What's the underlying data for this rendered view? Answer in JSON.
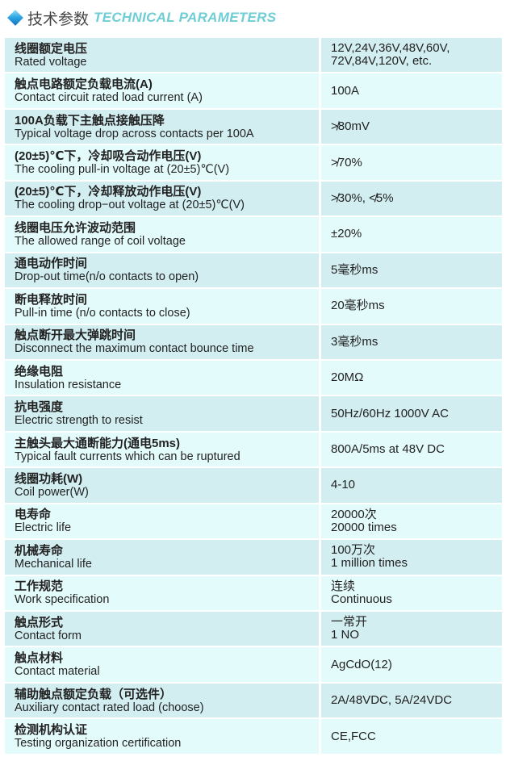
{
  "header": {
    "icon": "diamond-icon",
    "title_cn": "技术参数",
    "title_en": "TECHNICAL PARAMETERS"
  },
  "colors": {
    "row_dark": "#d2eef1",
    "row_light": "#e4fbfc",
    "title_accent": "#6fcdd6"
  },
  "rows": [
    {
      "cn": "线圈额定电压",
      "en": "Rated voltage",
      "value": [
        "12V,24V,36V,48V,60V,",
        "72V,84V,120V, etc."
      ]
    },
    {
      "cn": "触点电路额定负载电流(A)",
      "en": "Contact circuit rated load current (A)",
      "value": [
        "100A"
      ]
    },
    {
      "cn": "100A负载下主触点接触压降",
      "en": "Typical voltage drop across contacts per 100A",
      "value": [
        "≯80mV"
      ]
    },
    {
      "cn": "(20±5)℃下，冷却吸合动作电压(V)",
      "en": "The cooling pull-in voltage at (20±5)℃(V)",
      "value": [
        "≯70%"
      ]
    },
    {
      "cn": "(20±5)℃下，冷却释放动作电压(V)",
      "en": "The cooling drop−out voltage at (20±5)℃(V)",
      "value": [
        "≯30%, ≮5%"
      ]
    },
    {
      "cn": "线圈电压允许波动范围",
      "en": "The allowed range of coil voltage",
      "value": [
        "±20%"
      ]
    },
    {
      "cn": "通电动作时间",
      "en": "Drop-out time(n/o contacts to open)",
      "value": [
        "5毫秒ms"
      ]
    },
    {
      "cn": "断电释放时间",
      "en": "Pull-in time (n/o contacts to close)",
      "value": [
        "20毫秒ms"
      ]
    },
    {
      "cn": "触点断开最大弹跳时间",
      "en": "Disconnect the maximum contact bounce time",
      "value": [
        "3毫秒ms"
      ]
    },
    {
      "cn": "绝缘电阻",
      "en": "Insulation resistance",
      "value": [
        "20MΩ"
      ]
    },
    {
      "cn": "抗电强度",
      "en": "Electric strength to resist",
      "value": [
        "50Hz/60Hz  1000V AC"
      ]
    },
    {
      "cn": "主触头最大通断能力(通电5ms)",
      "en": "Typical fault currents which can be ruptured",
      "value": [
        "800A/5ms  at 48V DC"
      ]
    },
    {
      "cn": "线圈功耗(W)",
      "en": "Coil power(W)",
      "value": [
        "4-10"
      ]
    },
    {
      "cn": "电寿命",
      "en": "Electric life",
      "value": [
        "20000次",
        "20000 times"
      ]
    },
    {
      "cn": "机械寿命",
      "en": "Mechanical life",
      "value": [
        "100万次",
        "1 million times"
      ]
    },
    {
      "cn": "工作规范",
      "en": "Work specification",
      "value": [
        "连续",
        "Continuous"
      ]
    },
    {
      "cn": "触点形式",
      "en": "Contact form",
      "value": [
        "一常开",
        "1 NO"
      ]
    },
    {
      "cn": "触点材料",
      "en": "Contact material",
      "value": [
        "AgCdO(12)"
      ]
    },
    {
      "cn": "辅助触点额定负载（可选件）",
      "en": "Auxiliary contact rated load (choose)",
      "value": [
        "2A/48VDC, 5A/24VDC"
      ]
    },
    {
      "cn": "检测机构认证",
      "en": "Testing organization certification",
      "value": [
        "CE,FCC"
      ]
    }
  ]
}
